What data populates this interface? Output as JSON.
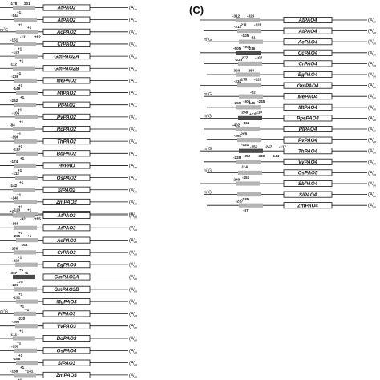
{
  "panel_label": "(C)",
  "cap_label": "m7G",
  "tail_label": "(A)n",
  "colors": {
    "ink": "#111111",
    "light_exon": "#b4b4b4",
    "dark_exon": "#4a4a4a",
    "box_fill": "#ffffff"
  },
  "panels": {
    "left_top": {
      "transcripts": [
        {
          "name": "AtPAO2",
          "nums": [
            "-178",
            "+1",
            "201"
          ]
        },
        {
          "name": "AtPAO2",
          "nums": [
            "-144",
            "+1"
          ]
        },
        {
          "name": "AcPAO2",
          "nums": [
            "m7G",
            "-111",
            "+1",
            "+82"
          ]
        },
        {
          "name": "CrPAO2",
          "nums": [
            "-151",
            "+1"
          ]
        },
        {
          "name": "GmPAO2A",
          "nums": [
            "-123",
            "+1"
          ]
        },
        {
          "name": "GmPAO2B",
          "nums": [
            "-112",
            "+1"
          ]
        },
        {
          "name": "MePAO2",
          "nums": [
            "-239",
            "+1"
          ]
        },
        {
          "name": "MtPAO2",
          "nums": [
            "-149",
            "+1"
          ]
        },
        {
          "name": "PtPAO2",
          "nums": [
            "-262",
            "+1"
          ]
        },
        {
          "name": "PvPAO2",
          "nums": [
            "-105",
            "+1"
          ]
        },
        {
          "name": "RcPAO2",
          "nums": [
            "-84",
            "+1"
          ]
        },
        {
          "name": "ThPAO2",
          "nums": [
            "-196",
            "+1"
          ]
        },
        {
          "name": "BdPAO2",
          "nums": [
            "-110",
            "+1"
          ]
        },
        {
          "name": "HvPAO",
          "nums": [
            "-174",
            "+1"
          ]
        },
        {
          "name": "OsPAO2",
          "nums": [
            "-112",
            "+1"
          ]
        },
        {
          "name": "SlPAO2",
          "nums": [
            "-142",
            "+1"
          ]
        },
        {
          "name": "ZmPAO2",
          "nums": [
            "-140",
            "+1"
          ]
        },
        {
          "name": "PpPAO2",
          "nums": [
            "-123",
            "-92",
            "+1",
            "+55"
          ]
        }
      ]
    },
    "left_bottom": {
      "transcripts": [
        {
          "name": "AtPAO3",
          "nums": [
            "+1"
          ]
        },
        {
          "name": "AtPAO3",
          "nums": [
            "-168",
            "+1"
          ]
        },
        {
          "name": "AcPAO3",
          "nums": [
            "-265",
            "-154",
            "+1"
          ]
        },
        {
          "name": "CrPAO3",
          "nums": [
            "-256",
            "+1"
          ]
        },
        {
          "name": "EgPAO3",
          "nums": [
            "-223",
            "+1"
          ]
        },
        {
          "name": "GmPAO3A",
          "nums": [
            "-367",
            "178",
            "+1"
          ]
        },
        {
          "name": "GmPAO3B",
          "nums": [
            "-223",
            "+1"
          ]
        },
        {
          "name": "MgPAO3",
          "nums": [
            "-221",
            "+1"
          ]
        },
        {
          "name": "PtPAO3",
          "nums": [
            "m7G",
            "-220",
            "+1"
          ]
        },
        {
          "name": "VvPAO3",
          "nums": [
            "-290",
            "+1"
          ]
        },
        {
          "name": "BdPAO3",
          "nums": [
            "-212",
            "+1"
          ]
        },
        {
          "name": "OsPAO4",
          "nums": [
            "-138",
            "+1"
          ]
        },
        {
          "name": "SlPAO3",
          "nums": [
            "-158",
            "+1"
          ]
        },
        {
          "name": "ZmPAO3",
          "nums": [
            "-168",
            "+1",
            "+141"
          ]
        }
      ]
    },
    "right": {
      "transcripts": [
        {
          "name": "AtPAO4",
          "nums": [
            "-312",
            "-211",
            "-326",
            "-128"
          ]
        },
        {
          "name": "AtPAO4",
          "nums": [
            "-214",
            "-105"
          ]
        },
        {
          "name": "AcPAO4",
          "nums": [
            "m7G",
            "-303",
            "-81"
          ]
        },
        {
          "name": "CcPAO4",
          "nums": [
            "-505",
            "-277",
            "-216",
            "-107"
          ]
        },
        {
          "name": "CrPAO4",
          "nums": [
            "-225"
          ]
        },
        {
          "name": "EgPAO4",
          "nums": [
            "-393",
            "-175",
            "-260",
            "-120"
          ]
        },
        {
          "name": "GmPAO4",
          "nums": [
            "-232"
          ]
        },
        {
          "name": "MePAO4",
          "nums": [
            "m7G",
            "-300",
            "-82",
            "-245"
          ]
        },
        {
          "name": "MtPAO4",
          "nums": [
            "-250",
            "-258",
            "-146",
            "-110"
          ]
        },
        {
          "name": "PpePAO4",
          "nums": [
            "m7G",
            "-162",
            "+337"
          ]
        },
        {
          "name": "PtPAO4",
          "nums": [
            "-402",
            "-208"
          ]
        },
        {
          "name": "PvPAO4",
          "nums": [
            "-267",
            "-161"
          ]
        },
        {
          "name": "ThPAO4",
          "nums": [
            "m7G",
            "-352",
            "-152",
            "-330",
            "-247",
            "-144",
            "-117"
          ]
        },
        {
          "name": "VvPAO4",
          "nums": [
            "-228",
            "-114"
          ]
        },
        {
          "name": "OsPAO5",
          "nums": [
            "m7G",
            "-251"
          ]
        },
        {
          "name": "SbPAO4",
          "nums": [
            "-249"
          ]
        },
        {
          "name": "SlPAO4",
          "nums": [
            "m7G",
            "-185"
          ]
        },
        {
          "name": "ZmPAO4",
          "nums": [
            "-237",
            "-87"
          ]
        }
      ]
    }
  }
}
